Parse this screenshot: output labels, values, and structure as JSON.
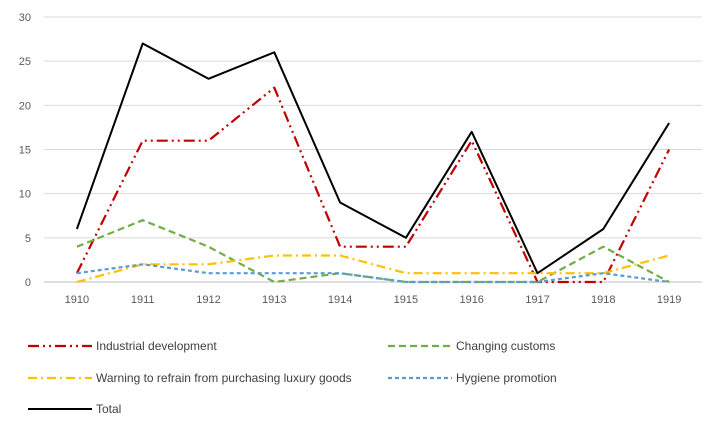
{
  "chart_data": {
    "type": "line",
    "title": "",
    "xlabel": "",
    "ylabel": "",
    "ylim": [
      0,
      30
    ],
    "yticks": [
      0,
      5,
      10,
      15,
      20,
      25,
      30
    ],
    "categories": [
      "1910",
      "1911",
      "1912",
      "1913",
      "1914",
      "1915",
      "1916",
      "1917",
      "1918",
      "1919"
    ],
    "grid": true,
    "legend_position": "bottom",
    "series": [
      {
        "name": "Industrial development",
        "values": [
          1,
          16,
          16,
          22,
          4,
          4,
          16,
          0,
          0,
          15
        ],
        "color": "#C00000",
        "dash": "long-dash-dot-dot"
      },
      {
        "name": "Changing customs",
        "values": [
          4,
          7,
          4,
          0,
          1,
          0,
          0,
          0,
          4,
          0
        ],
        "color": "#70AD47",
        "dash": "dash"
      },
      {
        "name": "Warning to refrain from purchasing luxury goods",
        "values": [
          0,
          2,
          2,
          3,
          3,
          1,
          1,
          1,
          1,
          3
        ],
        "color": "#FFC000",
        "dash": "dash-dot"
      },
      {
        "name": "Hygiene promotion",
        "values": [
          1,
          2,
          1,
          1,
          1,
          0,
          0,
          0,
          1,
          0
        ],
        "color": "#5B9BD5",
        "dash": "short-dash"
      },
      {
        "name": "Total",
        "values": [
          6,
          27,
          23,
          26,
          9,
          5,
          17,
          1,
          6,
          18
        ],
        "color": "#000000",
        "dash": "solid"
      }
    ]
  }
}
